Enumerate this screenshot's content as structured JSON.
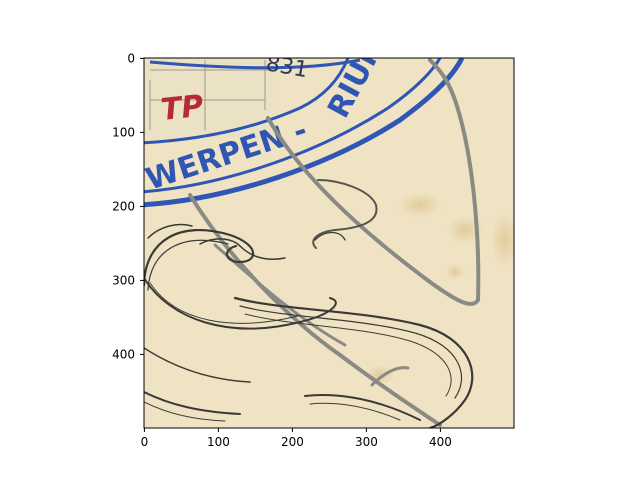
{
  "image": {
    "type": "image",
    "description_visible_text": {
      "stamp_text_bottom": "WERPEN -",
      "stamp_text_right": "RIUM",
      "stamp_partial_top": "831",
      "red_mark": "TP"
    }
  },
  "axes": {
    "x_ticks": [
      "0",
      "100",
      "200",
      "300",
      "400"
    ],
    "y_ticks": [
      "0",
      "100",
      "200",
      "300",
      "400"
    ],
    "xlim": [
      0,
      500
    ],
    "ylim": [
      500,
      0
    ]
  },
  "colors": {
    "paper": "#efe3c4",
    "paper_stain": "#e0c790",
    "stamp_blue": "#2f56b5",
    "ink_red": "#b52a35",
    "ink_dark": "#3a3a36",
    "ink_gray": "#8a8a85"
  }
}
